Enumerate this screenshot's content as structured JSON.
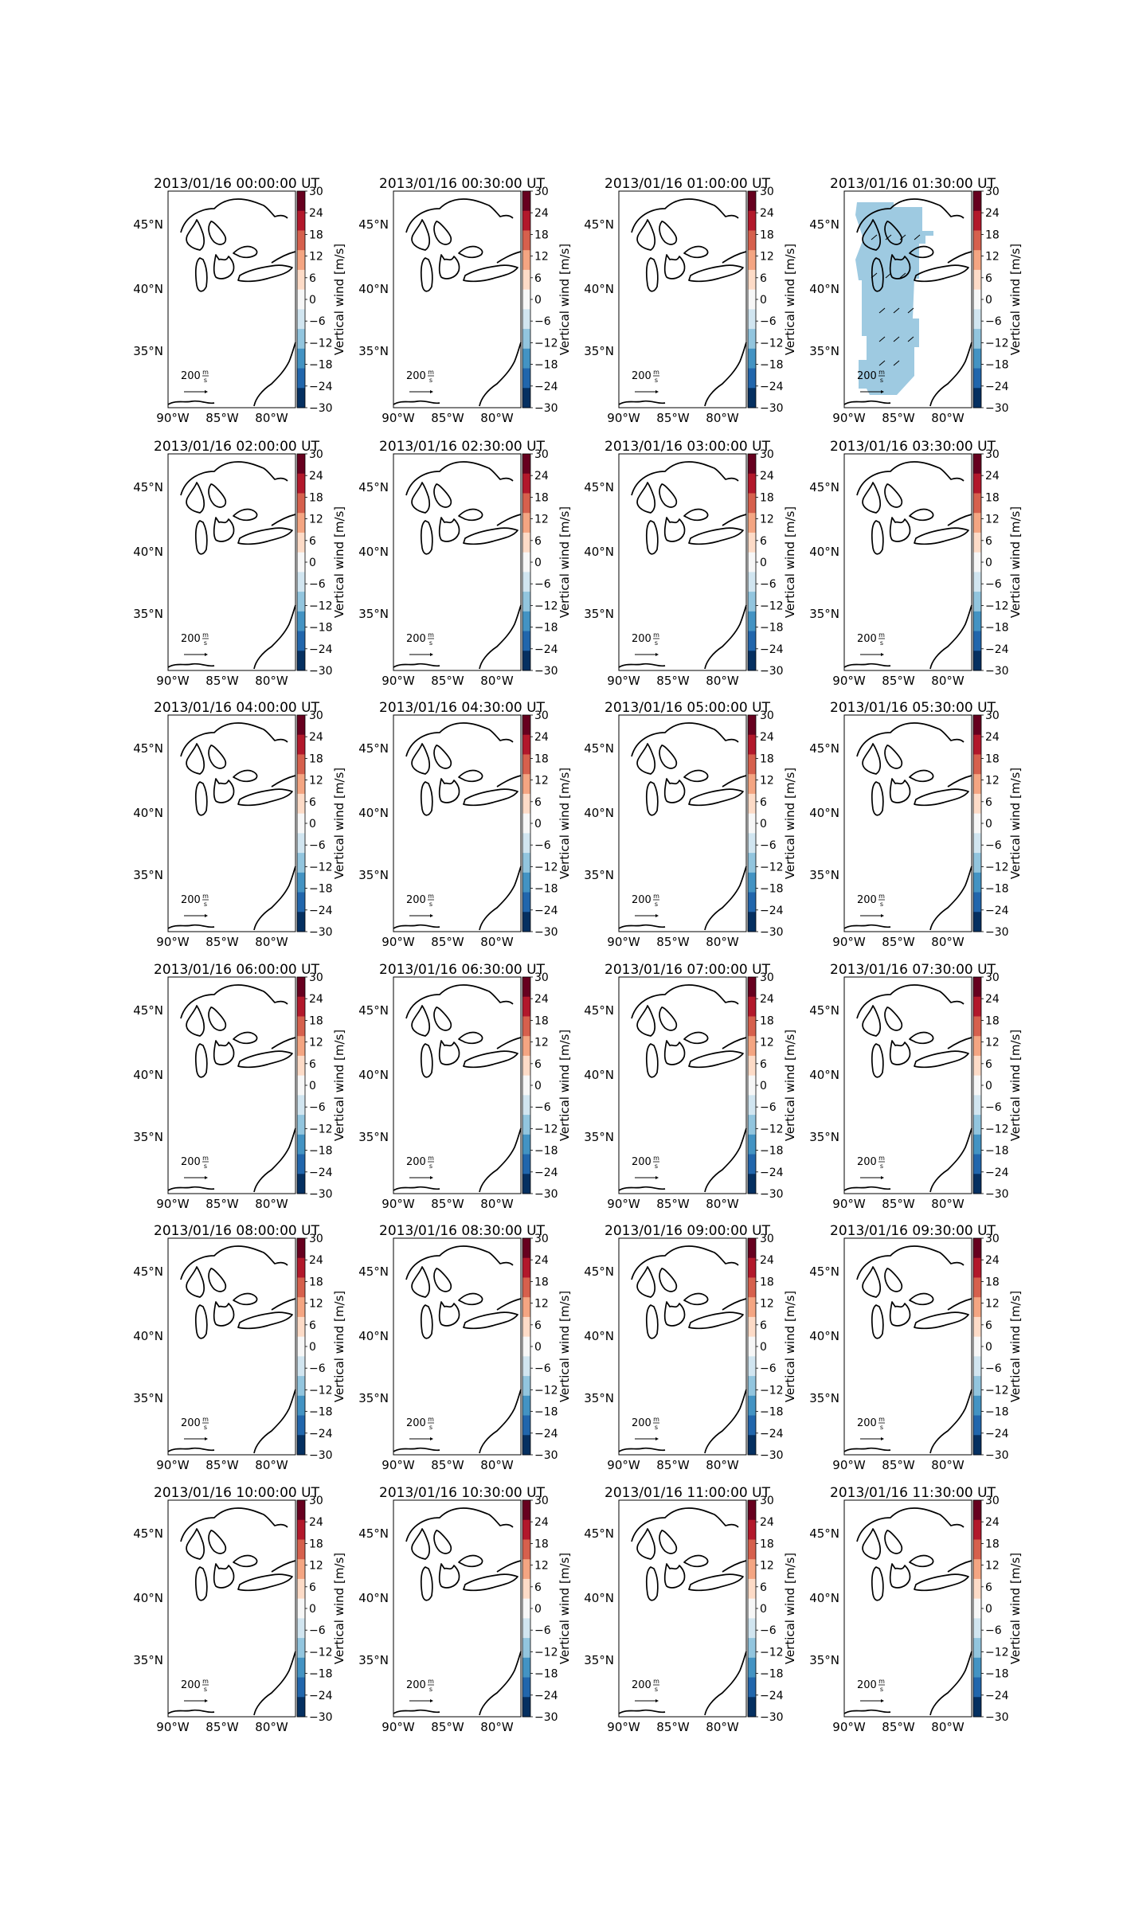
{
  "colorbar": {
    "label": "Vertical wind [m/s]",
    "ticks": [
      "30",
      "24",
      "18",
      "12",
      "6",
      "0",
      "−6",
      "−12",
      "−18",
      "−24",
      "−30"
    ],
    "colors_top_to_bottom": [
      "#67001f",
      "#b2182b",
      "#d6604d",
      "#f4a582",
      "#fddbc7",
      "#f7f7f7",
      "#d1e5f0",
      "#92c5de",
      "#4393c3",
      "#2166ac",
      "#053061"
    ]
  },
  "axes": {
    "lat_labels": [
      "45°N",
      "40°N",
      "35°N"
    ],
    "lon_labels": [
      "90°W",
      "85°W",
      "80°W"
    ]
  },
  "quiver_key": {
    "value": "200",
    "unit_num": "m",
    "unit_den": "s"
  },
  "colors": {
    "coastline": "#000000",
    "data_fill": "#9ecae1",
    "arrow": "#000000"
  },
  "panels": [
    {
      "title": "2013/01/16 00:00:00 UT",
      "has_data": false
    },
    {
      "title": "2013/01/16 00:30:00 UT",
      "has_data": false
    },
    {
      "title": "2013/01/16 01:00:00 UT",
      "has_data": false
    },
    {
      "title": "2013/01/16 01:30:00 UT",
      "has_data": true
    },
    {
      "title": "2013/01/16 02:00:00 UT",
      "has_data": false
    },
    {
      "title": "2013/01/16 02:30:00 UT",
      "has_data": false
    },
    {
      "title": "2013/01/16 03:00:00 UT",
      "has_data": false
    },
    {
      "title": "2013/01/16 03:30:00 UT",
      "has_data": false
    },
    {
      "title": "2013/01/16 04:00:00 UT",
      "has_data": false
    },
    {
      "title": "2013/01/16 04:30:00 UT",
      "has_data": false
    },
    {
      "title": "2013/01/16 05:00:00 UT",
      "has_data": false
    },
    {
      "title": "2013/01/16 05:30:00 UT",
      "has_data": false
    },
    {
      "title": "2013/01/16 06:00:00 UT",
      "has_data": false
    },
    {
      "title": "2013/01/16 06:30:00 UT",
      "has_data": false
    },
    {
      "title": "2013/01/16 07:00:00 UT",
      "has_data": false
    },
    {
      "title": "2013/01/16 07:30:00 UT",
      "has_data": false
    },
    {
      "title": "2013/01/16 08:00:00 UT",
      "has_data": false
    },
    {
      "title": "2013/01/16 08:30:00 UT",
      "has_data": false
    },
    {
      "title": "2013/01/16 09:00:00 UT",
      "has_data": false
    },
    {
      "title": "2013/01/16 09:30:00 UT",
      "has_data": false
    },
    {
      "title": "2013/01/16 10:00:00 UT",
      "has_data": false
    },
    {
      "title": "2013/01/16 10:30:00 UT",
      "has_data": false
    },
    {
      "title": "2013/01/16 11:00:00 UT",
      "has_data": false
    },
    {
      "title": "2013/01/16 11:30:00 UT",
      "has_data": false
    }
  ]
}
